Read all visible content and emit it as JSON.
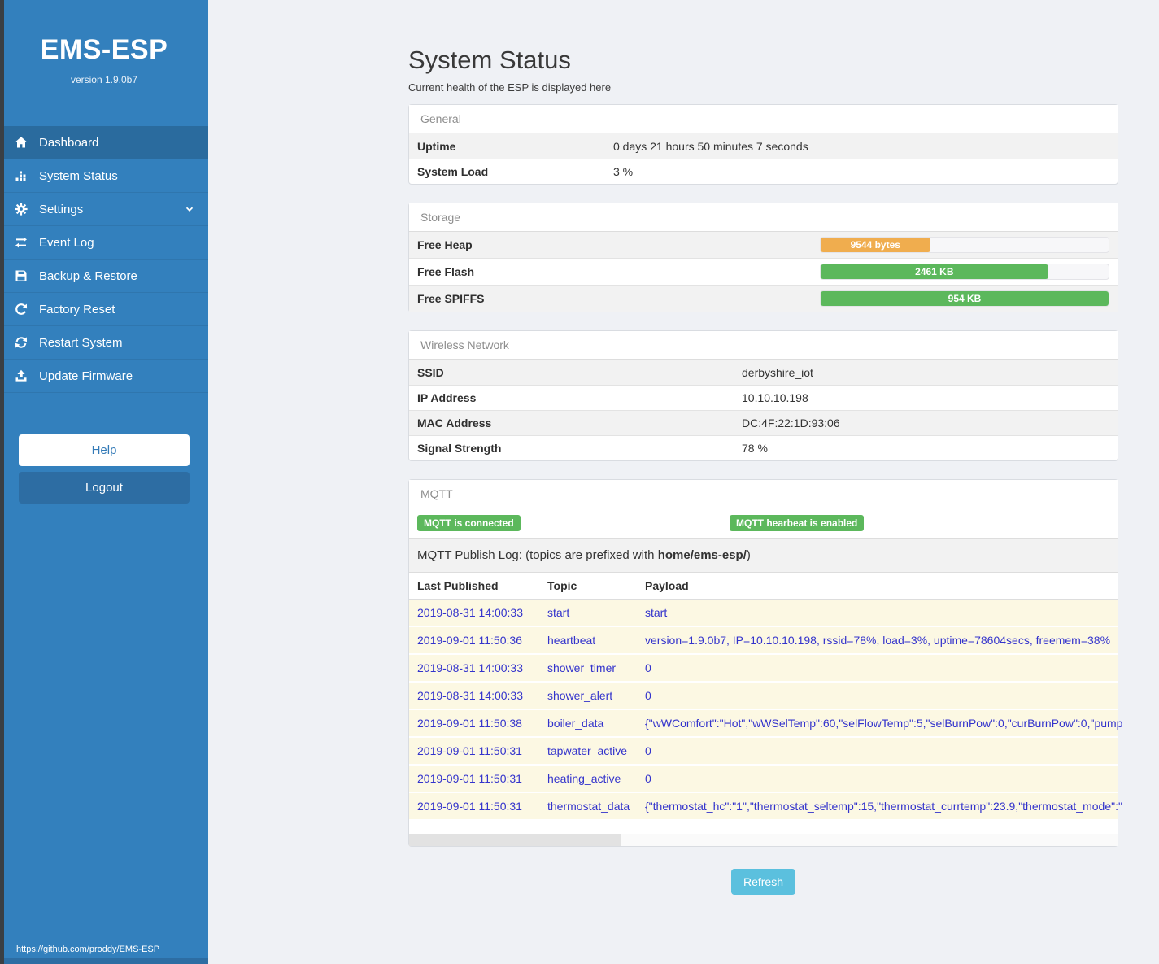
{
  "sidebar": {
    "title": "EMS-ESP",
    "version": "version 1.9.0b7",
    "menu": [
      {
        "label": "Dashboard",
        "icon": "home-icon",
        "active": true,
        "chevron": false
      },
      {
        "label": "System Status",
        "icon": "bar-chart-icon",
        "active": false,
        "chevron": false
      },
      {
        "label": "Settings",
        "icon": "gear-icon",
        "active": false,
        "chevron": true
      },
      {
        "label": "Event Log",
        "icon": "exchange-icon",
        "active": false,
        "chevron": false
      },
      {
        "label": "Backup & Restore",
        "icon": "save-icon",
        "active": false,
        "chevron": false
      },
      {
        "label": "Factory Reset",
        "icon": "rotate-right-icon",
        "active": false,
        "chevron": false
      },
      {
        "label": "Restart System",
        "icon": "refresh-icon",
        "active": false,
        "chevron": false
      },
      {
        "label": "Update Firmware",
        "icon": "upload-icon",
        "active": false,
        "chevron": false
      }
    ],
    "help_label": "Help",
    "logout_label": "Logout",
    "footer_link": "https://github.com/proddy/EMS-ESP"
  },
  "header": {
    "title": "System Status",
    "subtitle": "Current health of the ESP is displayed here"
  },
  "panels": {
    "general": {
      "title": "General",
      "rows": [
        {
          "label": "Uptime",
          "value": "0 days 21 hours 50 minutes 7 seconds"
        },
        {
          "label": "System Load",
          "value": "3 %"
        }
      ]
    },
    "storage": {
      "title": "Storage",
      "rows": [
        {
          "label": "Free Heap",
          "bar_label": "9544 bytes",
          "percent": 38,
          "color": "#f0ad4e"
        },
        {
          "label": "Free Flash",
          "bar_label": "2461 KB",
          "percent": 79,
          "color": "#5cb85c"
        },
        {
          "label": "Free SPIFFS",
          "bar_label": "954 KB",
          "percent": 100,
          "color": "#5cb85c"
        }
      ]
    },
    "wireless": {
      "title": "Wireless Network",
      "rows": [
        {
          "label": "SSID",
          "value": "derbyshire_iot"
        },
        {
          "label": "IP Address",
          "value": "10.10.10.198"
        },
        {
          "label": "MAC Address",
          "value": "DC:4F:22:1D:93:06"
        },
        {
          "label": "Signal Strength",
          "value": "78 %"
        }
      ]
    },
    "mqtt": {
      "title": "MQTT",
      "badges": [
        "MQTT is connected",
        "MQTT hearbeat is enabled"
      ],
      "caption": {
        "prefix": "MQTT Publish Log: (topics are prefixed with ",
        "bold": "home/ems-esp/",
        "suffix": ")"
      },
      "table": {
        "headers": [
          "Last Published",
          "Topic",
          "Payload"
        ],
        "rows": [
          [
            "2019-08-31 14:00:33",
            "start",
            "start"
          ],
          [
            "2019-09-01 11:50:36",
            "heartbeat",
            "version=1.9.0b7, IP=10.10.10.198, rssid=78%, load=3%, uptime=78604secs, freemem=38%"
          ],
          [
            "2019-08-31 14:00:33",
            "shower_timer",
            "0"
          ],
          [
            "2019-08-31 14:00:33",
            "shower_alert",
            "0"
          ],
          [
            "2019-09-01 11:50:38",
            "boiler_data",
            "{\"wWComfort\":\"Hot\",\"wWSelTemp\":60,\"selFlowTemp\":5,\"selBurnPow\":0,\"curBurnPow\":0,\"pump"
          ],
          [
            "2019-09-01 11:50:31",
            "tapwater_active",
            "0"
          ],
          [
            "2019-09-01 11:50:31",
            "heating_active",
            "0"
          ],
          [
            "2019-09-01 11:50:31",
            "thermostat_data",
            "{\"thermostat_hc\":\"1\",\"thermostat_seltemp\":15,\"thermostat_currtemp\":23.9,\"thermostat_mode\":\""
          ]
        ]
      }
    }
  },
  "refresh_label": "Refresh",
  "colors": {
    "sidebar": "#3380bd",
    "sidebar_active": "#2c6fa4",
    "success_green": "#5cb85c",
    "warning_orange": "#f0ad4e",
    "info_blue": "#5bc0de",
    "log_text_blue": "#3333cc",
    "page_background": "#eff1f5"
  }
}
